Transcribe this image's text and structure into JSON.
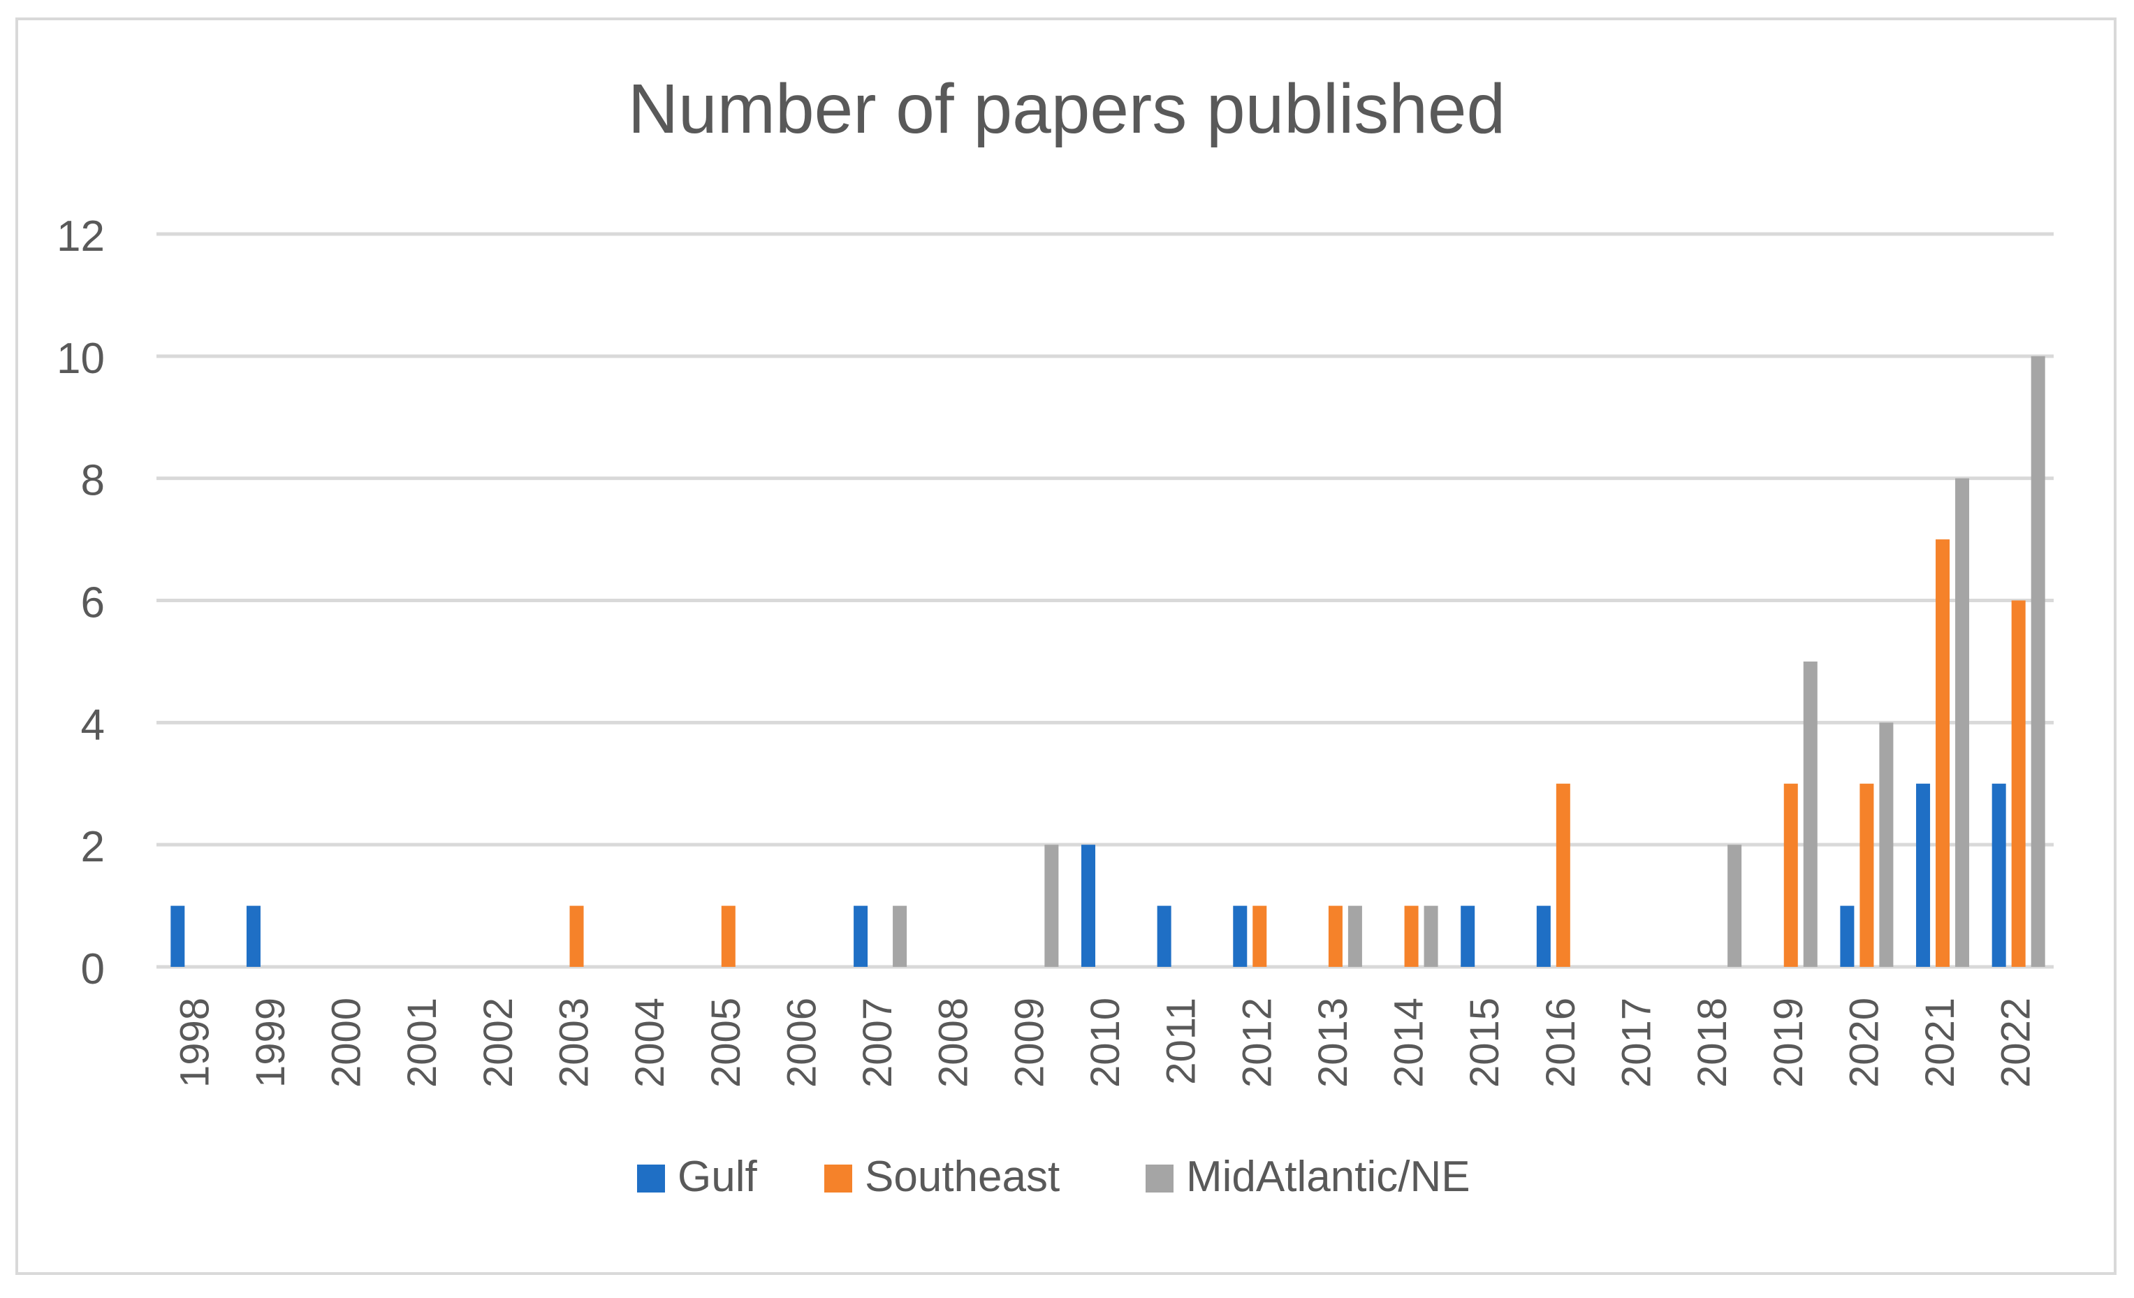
{
  "chart_data": {
    "type": "bar",
    "title": "Number of papers published",
    "xlabel": "",
    "ylabel": "",
    "ylim": [
      0,
      12
    ],
    "yticks": [
      0,
      2,
      4,
      6,
      8,
      10,
      12
    ],
    "grid": true,
    "legend_position": "bottom",
    "categories": [
      "1998",
      "1999",
      "2000",
      "2001",
      "2002",
      "2003",
      "2004",
      "2005",
      "2006",
      "2007",
      "2008",
      "2009",
      "2010",
      "2011",
      "2012",
      "2013",
      "2014",
      "2015",
      "2016",
      "2017",
      "2018",
      "2019",
      "2020",
      "2021",
      "2022"
    ],
    "series": [
      {
        "name": "Gulf",
        "color": "#1f6fc5",
        "values": [
          1,
          1,
          0,
          0,
          0,
          0,
          0,
          0,
          0,
          1,
          0,
          0,
          2,
          1,
          1,
          0,
          0,
          1,
          1,
          0,
          0,
          0,
          1,
          3,
          3
        ]
      },
      {
        "name": "Southeast",
        "color": "#f5822a",
        "values": [
          0,
          0,
          0,
          0,
          0,
          1,
          0,
          1,
          0,
          0,
          0,
          0,
          0,
          0,
          1,
          1,
          1,
          0,
          3,
          0,
          0,
          3,
          3,
          7,
          6
        ]
      },
      {
        "name": "MidAtlantic/NE",
        "color": "#a5a5a5",
        "values": [
          0,
          0,
          0,
          0,
          0,
          0,
          0,
          0,
          0,
          1,
          0,
          2,
          0,
          0,
          0,
          1,
          1,
          0,
          0,
          0,
          2,
          5,
          4,
          8,
          10
        ]
      }
    ]
  }
}
